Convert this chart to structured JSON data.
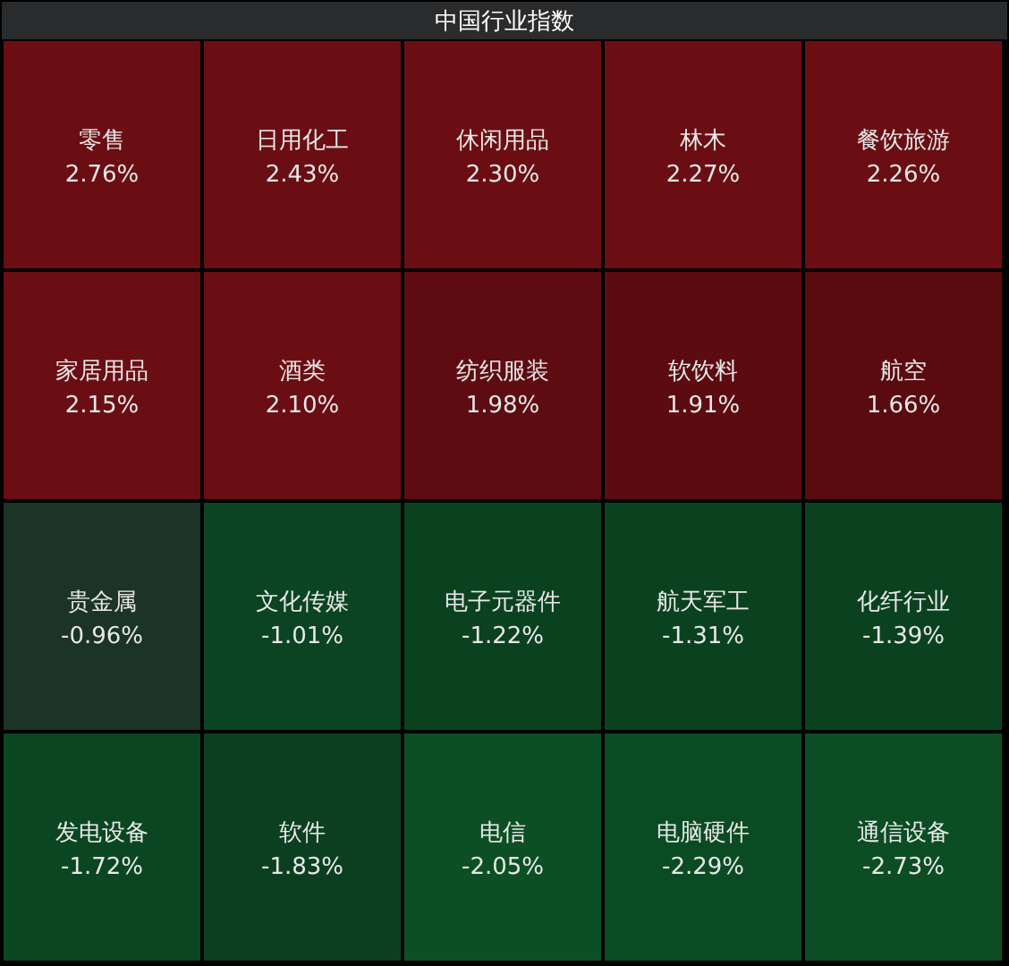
{
  "chart_data": {
    "type": "other",
    "title": "中国行业指数",
    "categories": [
      "零售",
      "日用化工",
      "休闲用品",
      "林木",
      "餐饮旅游",
      "家居用品",
      "酒类",
      "纺织服装",
      "软饮料",
      "航空",
      "贵金属",
      "文化传媒",
      "电子元器件",
      "航天军工",
      "化纤行业",
      "发电设备",
      "软件",
      "电信",
      "电脑硬件",
      "通信设备"
    ],
    "values": [
      2.76,
      2.43,
      2.3,
      2.27,
      2.26,
      2.15,
      2.1,
      1.98,
      1.91,
      1.66,
      -0.96,
      -1.01,
      -1.22,
      -1.31,
      -1.39,
      -1.72,
      -1.83,
      -2.05,
      -2.29,
      -2.73
    ],
    "value_labels": [
      "2.76%",
      "2.43%",
      "2.30%",
      "2.27%",
      "2.26%",
      "2.15%",
      "2.10%",
      "1.98%",
      "1.91%",
      "1.66%",
      "-0.96%",
      "-1.01%",
      "-1.22%",
      "-1.31%",
      "-1.39%",
      "-1.72%",
      "-1.83%",
      "-2.05%",
      "-2.29%",
      "-2.73%"
    ],
    "colors": [
      "#6b0e14",
      "#6b0e14",
      "#6b0e14",
      "#6b0e14",
      "#6b0e14",
      "#6b0e14",
      "#6b0e14",
      "#5e0c12",
      "#5c0b11",
      "#5a0b10",
      "#1c3327",
      "#0b4422",
      "#0a4220",
      "#0a4220",
      "#0a4220",
      "#0b4622",
      "#0b3f20",
      "#0c4f25",
      "#0b4b23",
      "#0c4d24"
    ]
  }
}
